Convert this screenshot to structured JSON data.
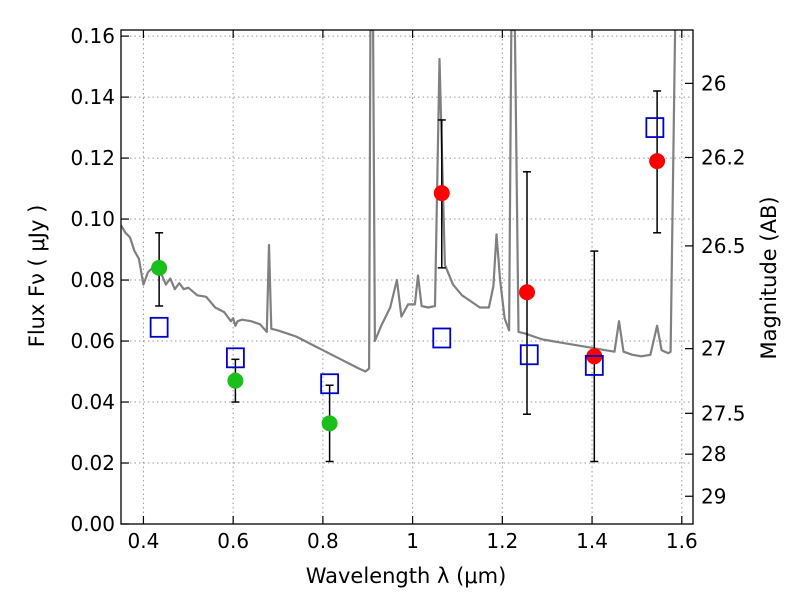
{
  "chart_data": {
    "type": "scatter",
    "title": "",
    "xlabel": "Wavelength  λ (μm)",
    "ylabel": "Flux  Fν  ( μJy )",
    "y2label": "Magnitude (AB)",
    "xlim": [
      0.35,
      1.625
    ],
    "ylim": [
      0.0,
      0.162
    ],
    "grid": true,
    "x_ticks": [
      {
        "value": 0.4,
        "label": "0.4"
      },
      {
        "value": 0.6,
        "label": "0.6"
      },
      {
        "value": 0.8,
        "label": "0.8"
      },
      {
        "value": 1.0,
        "label": "1"
      },
      {
        "value": 1.2,
        "label": "1.2"
      },
      {
        "value": 1.4,
        "label": "1.4"
      },
      {
        "value": 1.6,
        "label": "1.6"
      }
    ],
    "y_ticks": [
      {
        "value": 0.0,
        "label": "0.00"
      },
      {
        "value": 0.02,
        "label": "0.02"
      },
      {
        "value": 0.04,
        "label": "0.04"
      },
      {
        "value": 0.06,
        "label": "0.06"
      },
      {
        "value": 0.08,
        "label": "0.08"
      },
      {
        "value": 0.1,
        "label": "0.10"
      },
      {
        "value": 0.12,
        "label": "0.12"
      },
      {
        "value": 0.14,
        "label": "0.14"
      },
      {
        "value": 0.16,
        "label": "0.16"
      }
    ],
    "y2_ticks": [
      {
        "flux": 0.1445,
        "label": "26"
      },
      {
        "flux": 0.1202,
        "label": "26.2"
      },
      {
        "flux": 0.0912,
        "label": "26.5"
      },
      {
        "flux": 0.0575,
        "label": "27"
      },
      {
        "flux": 0.0363,
        "label": "27.5"
      },
      {
        "flux": 0.0229,
        "label": "28"
      },
      {
        "flux": 0.0091,
        "label": "29"
      }
    ],
    "colors": {
      "model": "#808080",
      "green": "#1bbf1b",
      "red": "#ff0000",
      "boxes": "#0000cc",
      "errorbar": "#000000",
      "grid": "#999999"
    },
    "series": [
      {
        "marker": "circle",
        "color": "#1bbf1b",
        "points": [
          {
            "x": 0.435,
            "y": 0.084,
            "ylow": 0.0715,
            "yhigh": 0.0955
          },
          {
            "x": 0.605,
            "y": 0.047,
            "ylow": 0.04,
            "yhigh": 0.054
          },
          {
            "x": 0.815,
            "y": 0.033,
            "ylow": 0.0205,
            "yhigh": 0.0455
          }
        ]
      },
      {
        "marker": "circle",
        "color": "#ff0000",
        "points": [
          {
            "x": 1.065,
            "y": 0.1085,
            "ylow": 0.084,
            "yhigh": 0.1325
          },
          {
            "x": 1.255,
            "y": 0.076,
            "ylow": 0.036,
            "yhigh": 0.1155
          },
          {
            "x": 1.405,
            "y": 0.055,
            "ylow": 0.0205,
            "yhigh": 0.0895
          },
          {
            "x": 1.545,
            "y": 0.119,
            "ylow": 0.0955,
            "yhigh": 0.142
          }
        ]
      },
      {
        "marker": "open-square",
        "color": "#0000cc",
        "points": [
          {
            "x": 0.435,
            "y": 0.0645
          },
          {
            "x": 0.605,
            "y": 0.0545
          },
          {
            "x": 0.815,
            "y": 0.046
          },
          {
            "x": 1.065,
            "y": 0.061
          },
          {
            "x": 1.26,
            "y": 0.0555
          },
          {
            "x": 1.405,
            "y": 0.052
          },
          {
            "x": 1.54,
            "y": 0.13
          }
        ]
      },
      {
        "marker": "line",
        "color": "#808080",
        "points": [
          [
            0.35,
            0.098
          ],
          [
            0.36,
            0.0955
          ],
          [
            0.37,
            0.094
          ],
          [
            0.38,
            0.0895
          ],
          [
            0.39,
            0.087
          ],
          [
            0.4,
            0.0785
          ],
          [
            0.41,
            0.0825
          ],
          [
            0.42,
            0.084
          ],
          [
            0.43,
            0.083
          ],
          [
            0.44,
            0.082
          ],
          [
            0.45,
            0.0785
          ],
          [
            0.46,
            0.0805
          ],
          [
            0.47,
            0.077
          ],
          [
            0.48,
            0.079
          ],
          [
            0.49,
            0.077
          ],
          [
            0.5,
            0.0775
          ],
          [
            0.52,
            0.075
          ],
          [
            0.54,
            0.0745
          ],
          [
            0.56,
            0.071
          ],
          [
            0.58,
            0.0695
          ],
          [
            0.595,
            0.0665
          ],
          [
            0.6,
            0.0675
          ],
          [
            0.605,
            0.065
          ],
          [
            0.61,
            0.0665
          ],
          [
            0.62,
            0.067
          ],
          [
            0.64,
            0.0665
          ],
          [
            0.66,
            0.0655
          ],
          [
            0.675,
            0.063
          ],
          [
            0.68,
            0.0915
          ],
          [
            0.685,
            0.064
          ],
          [
            0.7,
            0.0635
          ],
          [
            0.72,
            0.0625
          ],
          [
            0.74,
            0.0615
          ],
          [
            0.76,
            0.06
          ],
          [
            0.78,
            0.0585
          ],
          [
            0.8,
            0.057
          ],
          [
            0.82,
            0.0555
          ],
          [
            0.84,
            0.054
          ],
          [
            0.86,
            0.0525
          ],
          [
            0.88,
            0.051
          ],
          [
            0.895,
            0.05
          ],
          [
            0.903,
            0.051
          ],
          [
            0.906,
            0.162
          ],
          [
            0.912,
            0.162
          ],
          [
            0.916,
            0.06
          ],
          [
            0.93,
            0.065
          ],
          [
            0.95,
            0.071
          ],
          [
            0.965,
            0.08
          ],
          [
            0.975,
            0.068
          ],
          [
            0.99,
            0.072
          ],
          [
            1.005,
            0.072
          ],
          [
            1.012,
            0.0815
          ],
          [
            1.02,
            0.0715
          ],
          [
            1.035,
            0.071
          ],
          [
            1.05,
            0.0715
          ],
          [
            1.06,
            0.1525
          ],
          [
            1.072,
            0.085
          ],
          [
            1.09,
            0.0785
          ],
          [
            1.11,
            0.075
          ],
          [
            1.13,
            0.073
          ],
          [
            1.15,
            0.071
          ],
          [
            1.17,
            0.071
          ],
          [
            1.18,
            0.078
          ],
          [
            1.187,
            0.095
          ],
          [
            1.195,
            0.08
          ],
          [
            1.205,
            0.0675
          ],
          [
            1.215,
            0.0635
          ],
          [
            1.22,
            0.162
          ],
          [
            1.228,
            0.162
          ],
          [
            1.236,
            0.063
          ],
          [
            1.25,
            0.0625
          ],
          [
            1.27,
            0.0615
          ],
          [
            1.29,
            0.0605
          ],
          [
            1.31,
            0.06
          ],
          [
            1.33,
            0.0595
          ],
          [
            1.35,
            0.059
          ],
          [
            1.37,
            0.0585
          ],
          [
            1.39,
            0.058
          ],
          [
            1.41,
            0.0575
          ],
          [
            1.43,
            0.057
          ],
          [
            1.45,
            0.0565
          ],
          [
            1.46,
            0.0665
          ],
          [
            1.47,
            0.0565
          ],
          [
            1.49,
            0.0555
          ],
          [
            1.51,
            0.055
          ],
          [
            1.53,
            0.0555
          ],
          [
            1.545,
            0.065
          ],
          [
            1.555,
            0.057
          ],
          [
            1.57,
            0.056
          ],
          [
            1.575,
            0.0565
          ],
          [
            1.585,
            0.162
          ]
        ]
      }
    ]
  }
}
